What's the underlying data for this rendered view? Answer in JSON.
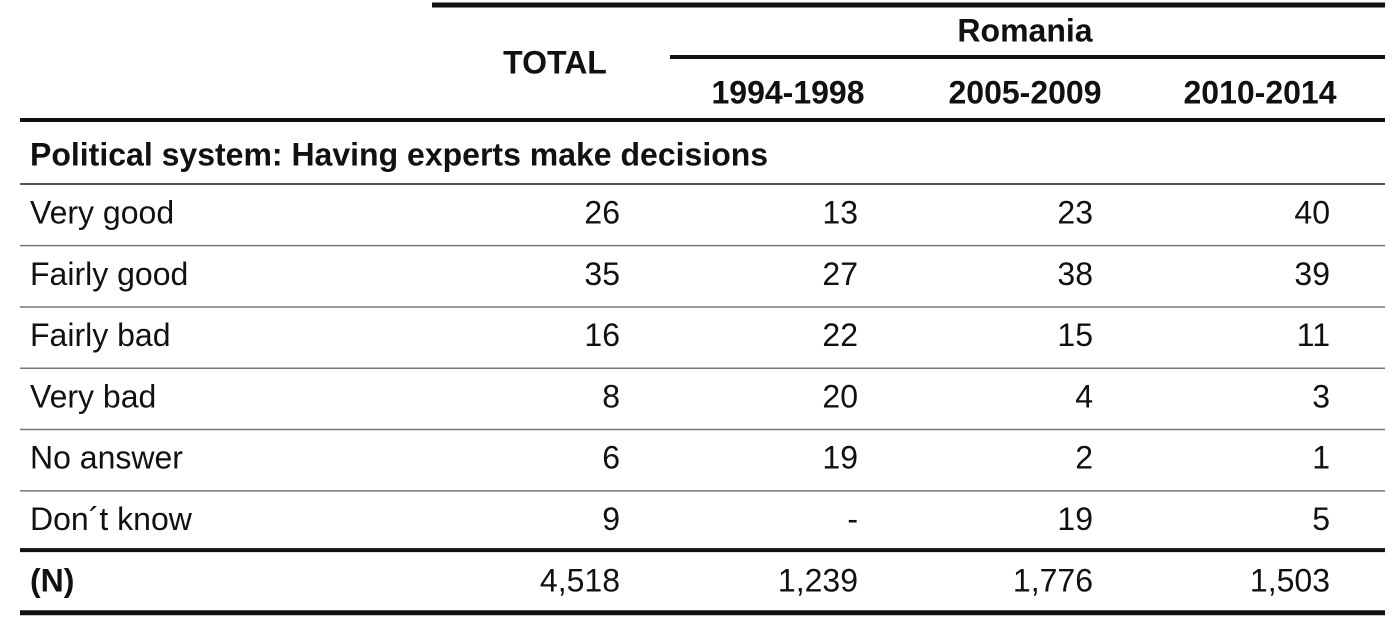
{
  "table": {
    "columns": {
      "total": "TOTAL",
      "group": "Romania",
      "periods": [
        "1994-1998",
        "2005-2009",
        "2010-2014"
      ]
    },
    "section": "Political system: Having experts make decisions",
    "rows": [
      [
        "Very good",
        "26",
        "13",
        "23",
        "40"
      ],
      [
        "Fairly good",
        "35",
        "27",
        "38",
        "39"
      ],
      [
        "Fairly bad",
        "16",
        "22",
        "15",
        "11"
      ],
      [
        "Very bad",
        "8",
        "20",
        "4",
        "3"
      ],
      [
        "No answer",
        "6",
        "19",
        "2",
        "1"
      ],
      [
        "Don´t know",
        "9",
        "-",
        "19",
        "5"
      ]
    ],
    "total_row": [
      "(N)",
      "4,518",
      "1,239",
      "1,776",
      "1,503"
    ]
  }
}
